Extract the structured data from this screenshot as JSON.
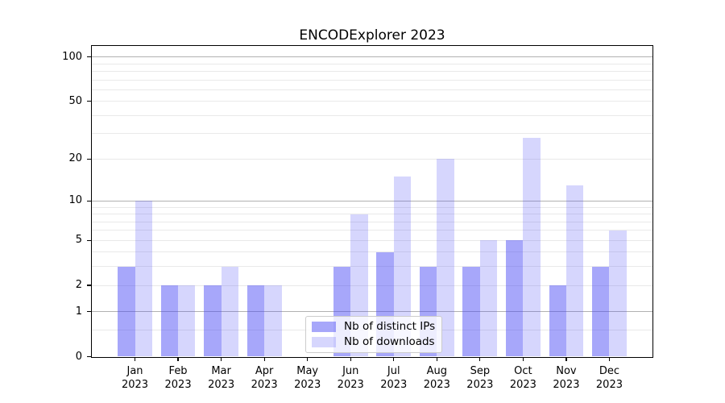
{
  "chart_data": {
    "type": "bar",
    "title": "ENCODExplorer 2023",
    "categories": [
      "Jan 2023",
      "Feb 2023",
      "Mar 2023",
      "Apr 2023",
      "May 2023",
      "Jun 2023",
      "Jul 2023",
      "Aug 2023",
      "Sep 2023",
      "Oct 2023",
      "Nov 2023",
      "Dec 2023"
    ],
    "series": [
      {
        "name": "Nb of distinct IPs",
        "color": "rgba(68,68,245,0.47)",
        "values": [
          3,
          2,
          2,
          2,
          0,
          3,
          4,
          3,
          3,
          5,
          2,
          3
        ]
      },
      {
        "name": "Nb of downloads",
        "color": "rgba(68,68,245,0.22)",
        "values": [
          10,
          2,
          3,
          2,
          0,
          8,
          15,
          20,
          5,
          28,
          13,
          6
        ]
      }
    ],
    "xlabel": "",
    "ylabel": "",
    "yscale": "log1p",
    "ylim": [
      0,
      119
    ],
    "yticks": [
      0,
      1,
      2,
      5,
      10,
      20,
      50,
      100
    ],
    "minor_gridlines": [
      0.5,
      3,
      4,
      6,
      7,
      8,
      9,
      30,
      40,
      60,
      70,
      80,
      90
    ],
    "emphasized_gridlines": [
      1,
      10,
      100
    ],
    "grid": "on",
    "legend_position": "lower center",
    "colors": {
      "spine": "#000000",
      "grid_major": "#b2b2b2",
      "grid_minor": "#e9e9e9",
      "text": "#000000",
      "tick": "#000000",
      "legend_border": "#cccccc",
      "legend_bg": "rgba(255,255,255,0.8)",
      "background": "#ffffff"
    }
  }
}
